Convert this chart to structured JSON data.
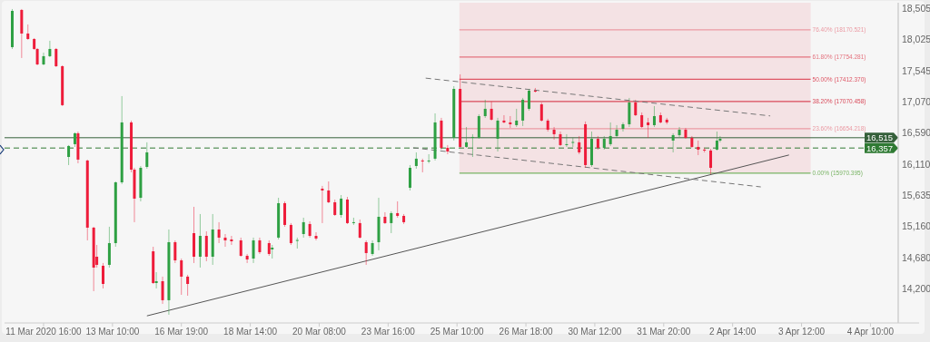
{
  "chart_data": {
    "type": "candlestick",
    "categories": [
      null,
      null,
      null,
      null,
      null,
      null,
      null,
      null,
      null,
      null,
      null,
      null,
      "11 Mar 2020 16:00",
      null,
      null,
      null,
      null,
      null,
      null,
      null,
      null,
      null,
      null,
      null,
      null,
      null,
      null,
      null,
      null,
      null,
      null,
      null,
      null,
      null,
      "13 Mar 10:00",
      null,
      null,
      null,
      null,
      null,
      null,
      null,
      null,
      null,
      null,
      null,
      null,
      null,
      null,
      null,
      null,
      null,
      null,
      null,
      null,
      null,
      "16 Mar 19:00",
      null,
      null,
      null,
      null,
      null,
      null,
      null,
      null,
      null,
      null,
      null,
      null,
      null,
      null,
      null,
      null,
      null,
      null,
      null,
      null,
      null,
      "18 Mar 14:00",
      null,
      null,
      null,
      null,
      null,
      null,
      null,
      null,
      null,
      null,
      null,
      null,
      null,
      null,
      null,
      null,
      null,
      null,
      null,
      null,
      null,
      "20 Mar 08:00",
      null,
      null,
      null,
      null,
      null,
      null,
      null,
      null,
      null,
      null,
      null,
      null,
      null,
      null,
      null,
      null,
      null,
      null,
      null,
      null,
      null,
      "23 Mar 16:00",
      null,
      null,
      null,
      null,
      null,
      null,
      null,
      null,
      null,
      null,
      null,
      null,
      null,
      null,
      null,
      null,
      null,
      null,
      null,
      null,
      null,
      "25 Mar 10:00",
      null,
      null,
      null,
      null,
      null,
      null,
      null,
      null,
      null,
      null,
      null,
      null,
      null,
      null,
      null,
      null,
      null,
      null,
      null,
      null,
      null,
      "26 Mar 18:00",
      null,
      null,
      null,
      null,
      null,
      null,
      null,
      null,
      null,
      null,
      null,
      null,
      null,
      null,
      null,
      null,
      null,
      null,
      null,
      null,
      null,
      "30 Mar 12:00",
      null,
      null,
      null,
      null,
      null,
      null,
      null,
      null,
      null,
      null,
      null,
      null,
      null,
      null,
      null,
      null,
      null,
      null,
      null,
      null,
      null,
      "31 Mar 20:00",
      null,
      null,
      null,
      null,
      null,
      null,
      null,
      null,
      null,
      null,
      null,
      null,
      null,
      null,
      null,
      null,
      null,
      null,
      null,
      null,
      null,
      "2 Apr 14:00",
      null,
      null,
      null,
      null,
      null,
      null,
      null,
      null,
      null,
      null,
      null,
      null,
      null,
      null,
      null,
      null,
      null,
      null,
      null,
      null,
      null,
      "3 Apr 12:00",
      null,
      null,
      null,
      null,
      null,
      null,
      null,
      null,
      null,
      null,
      null,
      null,
      null,
      null,
      null,
      null,
      null,
      null,
      null,
      null,
      null,
      "4 Apr 10:00",
      null,
      null,
      null,
      null,
      null,
      null,
      null,
      null
    ],
    "ylim": [
      13671,
      18588
    ],
    "yticks": [
      {
        "value": 18505,
        "label": "18,505"
      },
      {
        "value": 18025,
        "label": "18,025"
      },
      {
        "value": 17545,
        "label": "17,545"
      },
      {
        "value": 17070,
        "label": "17,070"
      },
      {
        "value": 16590,
        "label": "16,590"
      },
      {
        "value": 16110,
        "label": "16,110"
      },
      {
        "value": 15635,
        "label": "15,635"
      },
      {
        "value": 15160,
        "label": "15,160"
      },
      {
        "value": 14680,
        "label": "14,680"
      },
      {
        "value": 14200,
        "label": "14,200"
      }
    ],
    "ohlc": [
      null,
      null,
      [
        17906,
        18491,
        17878,
        18463
      ],
      null,
      null,
      [
        18477,
        18491,
        17739,
        18115
      ],
      null,
      [
        18115,
        18254,
        18018,
        18031
      ],
      null,
      [
        18031,
        18045,
        17864,
        17878
      ],
      [
        17878,
        17892,
        17627,
        17641
      ],
      null,
      [
        17641,
        17822,
        17627,
        17767
      ],
      null,
      [
        17767,
        18004,
        17753,
        17878
      ],
      null,
      [
        17878,
        17892,
        17600,
        17613
      ],
      null,
      [
        17613,
        17627,
        17001,
        17015
      ],
      null,
      [
        16220,
        16402,
        16095,
        16388
      ],
      null,
      [
        16416,
        16597,
        16374,
        16583
      ],
      [
        16583,
        16610,
        16123,
        16179
      ],
      null,
      null,
      [
        16165,
        16179,
        14939,
        15134
      ],
      null,
      [
        15134,
        15148,
        14159,
        14521
      ],
      [
        14688,
        14869,
        14521,
        14563
      ],
      null,
      [
        14549,
        14591,
        14201,
        14270
      ],
      null,
      [
        14563,
        15148,
        14521,
        14897
      ],
      null,
      [
        14897,
        15844,
        14841,
        15830
      ],
      null,
      [
        15830,
        17154,
        15803,
        16750
      ],
      null,
      null,
      [
        16750,
        16778,
        15984,
        16025
      ],
      [
        16025,
        16053,
        15218,
        15580
      ],
      null,
      [
        15593,
        16081,
        15538,
        16053
      ],
      null,
      [
        16067,
        16444,
        16039,
        16290
      ],
      null,
      [
        14771,
        14841,
        14270,
        14284
      ],
      [
        14284,
        14451,
        14201,
        14312
      ],
      null,
      [
        14312,
        14382,
        13964,
        14020
      ],
      null,
      [
        14020,
        15106,
        13797,
        14911
      ],
      null,
      [
        14911,
        14939,
        14591,
        14632
      ],
      null,
      [
        14632,
        14660,
        14103,
        14382
      ],
      null,
      [
        14382,
        14410,
        14089,
        14270
      ],
      null,
      [
        15050,
        15454,
        14591,
        14688
      ],
      null,
      [
        14688,
        15343,
        14521,
        15008
      ],
      null,
      [
        15008,
        15078,
        14619,
        14688
      ],
      null,
      [
        14688,
        15343,
        14563,
        15106
      ],
      null,
      [
        15106,
        15218,
        14897,
        14981
      ],
      null,
      [
        14981,
        15036,
        14841,
        14939
      ],
      null,
      [
        14953,
        15008,
        14869,
        14925
      ],
      null,
      null,
      [
        14939,
        14981,
        14688,
        14702
      ],
      null,
      [
        14702,
        14730,
        14591,
        14646
      ],
      null,
      [
        14660,
        14981,
        14591,
        14939
      ],
      null,
      [
        14939,
        14981,
        14730,
        14758
      ],
      null,
      null,
      [
        14897,
        14939,
        14702,
        14730
      ],
      [
        14800,
        14869,
        14660,
        14827
      ],
      null,
      [
        14981,
        15593,
        14953,
        15510
      ],
      null,
      [
        15510,
        15538,
        15148,
        15176
      ],
      null,
      [
        15176,
        15204,
        14869,
        14897
      ],
      null,
      [
        14939,
        14981,
        14813,
        14945
      ],
      null,
      [
        15036,
        15287,
        14981,
        15218
      ],
      null,
      [
        15190,
        15232,
        14981,
        15008
      ],
      null,
      [
        15008,
        15064,
        14939,
        14967
      ],
      null,
      [
        15733,
        15775,
        15204,
        15705
      ],
      null,
      [
        15705,
        15844,
        15510,
        15524
      ],
      null,
      [
        15524,
        15566,
        15315,
        15329
      ],
      null,
      [
        15329,
        15635,
        15287,
        15580
      ],
      null,
      [
        15566,
        15607,
        15190,
        15204
      ],
      null,
      [
        15204,
        15287,
        15176,
        15218
      ],
      null,
      [
        15204,
        15259,
        14967,
        14981
      ],
      null,
      [
        14911,
        14939,
        14563,
        14744
      ],
      null,
      [
        14730,
        14939,
        14702,
        14897
      ],
      null,
      [
        14911,
        15593,
        14786,
        15301
      ],
      null,
      [
        15301,
        15371,
        15190,
        15204
      ],
      null,
      [
        15204,
        15385,
        15050,
        15357
      ],
      null,
      [
        15357,
        15538,
        15287,
        15315
      ],
      null,
      [
        15315,
        15343,
        15190,
        15218
      ],
      null,
      [
        15747,
        16095,
        15705,
        16053
      ],
      null,
      [
        16081,
        16290,
        16039,
        16193
      ],
      null,
      [
        16165,
        16193,
        15984,
        16151
      ],
      null,
      [
        16151,
        16262,
        16123,
        16165
      ],
      null,
      [
        16193,
        16889,
        16165,
        16750
      ],
      null,
      [
        16778,
        16820,
        16332,
        16360
      ],
      null,
      [
        16360,
        16402,
        16262,
        16304
      ],
      null,
      [
        16513,
        17307,
        16471,
        17265
      ],
      null,
      [
        17265,
        17488,
        16360,
        16374
      ],
      null,
      [
        16374,
        16680,
        16360,
        16444
      ],
      null,
      [
        16513,
        16569,
        16220,
        16527
      ],
      null,
      [
        16513,
        16875,
        16499,
        16847
      ],
      null,
      [
        16847,
        17098,
        16820,
        16959
      ],
      null,
      [
        16959,
        17070,
        16778,
        16792
      ],
      null,
      [
        16499,
        16820,
        16304,
        16778
      ],
      null,
      [
        16778,
        16861,
        16736,
        16750
      ],
      null,
      [
        16750,
        16847,
        16666,
        16722
      ],
      null,
      [
        16708,
        16959,
        16680,
        16778
      ],
      null,
      [
        16778,
        17126,
        16694,
        17098
      ],
      null,
      [
        16959,
        17265,
        16931,
        17237
      ],
      null,
      [
        17237,
        17279,
        17209,
        17230
      ],
      null,
      [
        17028,
        17056,
        16764,
        16778
      ],
      null,
      [
        16778,
        16806,
        16610,
        16638
      ],
      null,
      [
        16638,
        16680,
        16485,
        16569
      ],
      null,
      [
        16569,
        16610,
        16388,
        16402
      ],
      null,
      [
        16402,
        16569,
        16374,
        16416
      ],
      null,
      [
        16444,
        16513,
        16374,
        16450
      ],
      null,
      [
        16444,
        16541,
        16262,
        16290
      ],
      null,
      [
        16722,
        16764,
        16053,
        16095
      ],
      null,
      [
        16095,
        16610,
        16067,
        16499
      ],
      null,
      [
        16499,
        16541,
        16332,
        16360
      ],
      null,
      [
        16360,
        16541,
        16332,
        16499
      ],
      null,
      [
        16416,
        16750,
        16388,
        16541
      ],
      null,
      [
        16541,
        16708,
        16513,
        16638
      ],
      null,
      [
        16652,
        16750,
        16610,
        16722
      ],
      null,
      [
        16722,
        17126,
        16680,
        17056
      ],
      null,
      [
        17056,
        17098,
        16847,
        16861
      ],
      null,
      [
        16861,
        16903,
        16666,
        16680
      ],
      null,
      [
        16750,
        16820,
        16513,
        16708
      ],
      null,
      [
        16708,
        17001,
        16680,
        16847
      ],
      null,
      [
        16861,
        16903,
        16736,
        16750
      ],
      null,
      [
        16792,
        16820,
        16722,
        16750
      ],
      null,
      [
        16471,
        16583,
        16290,
        16555
      ],
      null,
      [
        16555,
        16680,
        16527,
        16638
      ],
      null,
      [
        16638,
        16666,
        16499,
        16513
      ],
      null,
      [
        16513,
        16541,
        16360,
        16374
      ],
      null,
      [
        16374,
        16471,
        16248,
        16332
      ],
      null,
      [
        16332,
        16360,
        16290,
        16325
      ],
      null,
      [
        16318,
        16346,
        15956,
        16053
      ],
      null,
      [
        16332,
        16610,
        16318,
        16471
      ],
      [
        16471,
        16541,
        16444,
        16499
      ],
      null,
      null,
      null,
      null,
      null,
      null,
      null,
      null,
      null,
      null,
      null,
      null,
      null,
      null,
      null,
      null,
      null,
      null,
      null,
      null,
      null,
      null,
      null,
      null,
      null,
      null,
      null,
      null,
      null,
      null,
      null,
      null,
      null,
      null,
      null,
      null,
      null,
      null,
      null,
      null,
      null,
      null,
      null,
      null,
      null,
      null,
      null,
      null,
      null,
      null,
      null,
      null,
      null,
      null,
      null,
      null
    ],
    "colors": [
      null,
      null,
      "#2ea043",
      null,
      null,
      "#ee1c3a",
      null,
      "#ee1c3a",
      null,
      "#ee1c3a",
      "#ee1c3a",
      null,
      "#2ea043",
      null,
      "#2ea043",
      null,
      "#ee1c3a",
      null,
      "#ee1c3a",
      null,
      "#2ea043",
      null,
      "#2ea043",
      "#ee1c3a",
      null,
      null,
      "#ee1c3a",
      null,
      "#ee1c3a",
      "#ee1c3a",
      null,
      "#ee1c3a",
      null,
      "#2ea043",
      null,
      "#2ea043",
      null,
      "#2ea043",
      null,
      null,
      "#ee1c3a",
      "#ee1c3a",
      null,
      "#2ea043",
      null,
      "#2ea043",
      null,
      "#ee1c3a",
      "#2ea043",
      null,
      "#ee1c3a",
      null,
      "#2ea043",
      null,
      "#ee1c3a",
      null,
      "#ee1c3a",
      null,
      "#ee1c3a",
      null,
      "#ee1c3a",
      null,
      "#2ea043",
      null,
      "#ee1c3a",
      null,
      "#2ea043",
      null,
      "#ee1c3a",
      null,
      "#ee1c3a",
      null,
      "#ee1c3a",
      null,
      null,
      "#ee1c3a",
      null,
      "#ee1c3a",
      null,
      "#2ea043",
      null,
      "#ee1c3a",
      null,
      null,
      "#ee1c3a",
      "#2ea043",
      null,
      "#2ea043",
      null,
      "#ee1c3a",
      null,
      "#ee1c3a",
      null,
      "#2ea043",
      null,
      "#2ea043",
      null,
      "#ee1c3a",
      null,
      "#ee1c3a",
      null,
      "#ee1c3a",
      null,
      "#ee1c3a",
      null,
      "#ee1c3a",
      null,
      "#2ea043",
      null,
      "#ee1c3a",
      null,
      "#2ea043",
      null,
      "#ee1c3a",
      null,
      "#ee1c3a",
      null,
      "#2ea043",
      null,
      "#2ea043",
      null,
      "#ee1c3a",
      null,
      "#2ea043",
      null,
      "#ee1c3a",
      null,
      "#ee1c3a",
      null,
      "#2ea043",
      null,
      "#2ea043",
      null,
      "#ee1c3a",
      null,
      "#2ea043",
      null,
      "#2ea043",
      null,
      "#ee1c3a",
      null,
      "#ee1c3a",
      null,
      "#2ea043",
      null,
      "#ee1c3a",
      null,
      "#2ea043",
      null,
      "#2ea043",
      null,
      "#2ea043",
      null,
      "#2ea043",
      null,
      "#ee1c3a",
      null,
      "#2ea043",
      null,
      "#ee1c3a",
      null,
      "#ee1c3a",
      null,
      "#2ea043",
      null,
      "#2ea043",
      null,
      "#2ea043",
      null,
      "#ee1c3a",
      null,
      "#ee1c3a",
      null,
      "#ee1c3a",
      null,
      "#ee1c3a",
      null,
      "#ee1c3a",
      null,
      "#2ea043",
      null,
      "#2ea043",
      null,
      "#ee1c3a",
      null,
      "#ee1c3a",
      null,
      "#2ea043",
      null,
      "#ee1c3a",
      null,
      "#2ea043",
      null,
      "#2ea043",
      null,
      "#2ea043",
      null,
      "#2ea043",
      null,
      "#2ea043",
      null,
      "#ee1c3a",
      null,
      "#ee1c3a",
      null,
      "#ee1c3a",
      null,
      "#2ea043",
      null,
      "#ee1c3a",
      null,
      "#ee1c3a",
      null,
      "#2ea043",
      null,
      "#2ea043",
      null,
      "#ee1c3a",
      null,
      "#ee1c3a",
      null,
      "#ee1c3a",
      null,
      "#ee1c3a",
      null,
      "#ee1c3a",
      null,
      "#2ea043",
      "#2ea043",
      null,
      null,
      null,
      null,
      null,
      null,
      null,
      null,
      null,
      null,
      null,
      null,
      null,
      null,
      null,
      null,
      null,
      null,
      null,
      null,
      null,
      null,
      null,
      null,
      null,
      null,
      null,
      null,
      null,
      null,
      null,
      null,
      null,
      null,
      null,
      null,
      null,
      null,
      null,
      null,
      null,
      null,
      null,
      null,
      null,
      null,
      null,
      null,
      null,
      null,
      null,
      null,
      null,
      null,
      null,
      null
    ],
    "series": [
      {
        "type": "line",
        "color": "#555555",
        "line_style": "solid",
        "values": [
          null,
          null,
          null,
          null,
          null,
          null,
          null,
          null,
          null,
          null,
          null,
          null,
          null,
          null,
          null,
          null,
          null,
          null,
          null,
          null,
          null,
          null,
          null,
          null,
          null,
          null,
          null,
          null,
          null,
          null,
          null,
          null,
          null,
          null,
          null,
          null,
          null,
          null,
          null,
          null,
          null,
          null,
          null,
          null,
          null,
          13780,
          null,
          null,
          null,
          null,
          null,
          null,
          null,
          null,
          null,
          null,
          null,
          null,
          null,
          null,
          null,
          null,
          null,
          null,
          null,
          null,
          null,
          null,
          null,
          null,
          null,
          null,
          null,
          null,
          null,
          null,
          null,
          null,
          null,
          null,
          null,
          null,
          null,
          null,
          null,
          null,
          null,
          null,
          null,
          null,
          null,
          null,
          null,
          null,
          null,
          null,
          null,
          null,
          null,
          null,
          null,
          null,
          null,
          null,
          null,
          null,
          null,
          null,
          null,
          null,
          null,
          null,
          null,
          null,
          null,
          null,
          null,
          null,
          null,
          null,
          null,
          null,
          null,
          null,
          null,
          null,
          null,
          null,
          null,
          null,
          null,
          null,
          null,
          null,
          null,
          null,
          null,
          null,
          null,
          null,
          null,
          null,
          null,
          null,
          null,
          null,
          null,
          null,
          null,
          null,
          null,
          null,
          null,
          null,
          null,
          null,
          null,
          null,
          null,
          null,
          null,
          null,
          null,
          null,
          null,
          null,
          null,
          null,
          null,
          null,
          null,
          null,
          null,
          null,
          null,
          null,
          null,
          null,
          null,
          null,
          null,
          null,
          null,
          null,
          null,
          null,
          null,
          null,
          null,
          null,
          null,
          null,
          null,
          null,
          null,
          null,
          null,
          null,
          null,
          null,
          null,
          null,
          null,
          null,
          null,
          null,
          null,
          null,
          null,
          null,
          null,
          null,
          null,
          null,
          null,
          null,
          null,
          null,
          null,
          null,
          null,
          null,
          null,
          null,
          null,
          null,
          null,
          null,
          null,
          null,
          null,
          null,
          null,
          null,
          null,
          null,
          null,
          null,
          null,
          null,
          null,
          null,
          null,
          null,
          null,
          null,
          null,
          null,
          null,
          null,
          16250,
          null,
          null,
          null,
          null,
          null,
          null,
          null,
          null,
          null,
          null,
          null,
          null,
          null,
          null,
          null,
          null,
          null,
          null,
          null,
          null,
          null,
          null,
          null,
          null,
          null,
          null,
          null,
          null,
          null,
          null,
          null,
          null,
          null,
          null
        ]
      },
      {
        "type": "line",
        "color": "#777777",
        "line_style": "dashed",
        "values": [
          null,
          null,
          null,
          null,
          null,
          null,
          null,
          null,
          null,
          null,
          null,
          null,
          null,
          null,
          null,
          null,
          null,
          null,
          null,
          null,
          null,
          null,
          null,
          null,
          null,
          null,
          null,
          null,
          null,
          null,
          null,
          null,
          null,
          null,
          null,
          null,
          null,
          null,
          null,
          null,
          null,
          null,
          null,
          null,
          null,
          null,
          null,
          null,
          null,
          null,
          null,
          null,
          null,
          null,
          null,
          null,
          null,
          null,
          null,
          null,
          null,
          null,
          null,
          null,
          null,
          null,
          null,
          null,
          null,
          null,
          null,
          null,
          null,
          null,
          null,
          null,
          null,
          null,
          null,
          null,
          null,
          null,
          null,
          null,
          null,
          null,
          null,
          null,
          null,
          null,
          null,
          null,
          null,
          null,
          null,
          null,
          null,
          null,
          null,
          null,
          null,
          null,
          null,
          null,
          null,
          null,
          null,
          null,
          null,
          null,
          null,
          null,
          null,
          null,
          null,
          null,
          null,
          null,
          null,
          null,
          null,
          null,
          null,
          null,
          null,
          null,
          null,
          null,
          null,
          null,
          null,
          null,
          null,
          null,
          17430,
          null,
          null,
          null,
          null,
          null,
          null,
          null,
          null,
          null,
          null,
          null,
          null,
          null,
          null,
          null,
          null,
          null,
          null,
          null,
          null,
          null,
          null,
          null,
          null,
          null,
          null,
          null,
          null,
          null,
          null,
          null,
          null,
          null,
          null,
          null,
          null,
          null,
          null,
          null,
          null,
          null,
          null,
          null,
          null,
          null,
          null,
          null,
          null,
          null,
          null,
          null,
          null,
          null,
          null,
          null,
          null,
          null,
          null,
          null,
          null,
          null,
          null,
          null,
          null,
          null,
          null,
          null,
          null,
          null,
          null,
          null,
          null,
          null,
          null,
          null,
          null,
          null,
          null,
          null,
          null,
          null,
          null,
          null,
          null,
          null,
          null,
          null,
          null,
          null,
          null,
          null,
          null,
          null,
          null,
          null,
          null,
          null,
          null,
          null,
          null,
          null,
          null,
          null,
          null,
          null,
          null,
          null,
          null,
          null,
          16850,
          null,
          null,
          null,
          null,
          null,
          null,
          null,
          null,
          null,
          null,
          null,
          null,
          null,
          null,
          null,
          null,
          null,
          null,
          null,
          null,
          null,
          null,
          null,
          null,
          null,
          null,
          null,
          null,
          null,
          null,
          null,
          null,
          null,
          null,
          null,
          null,
          null,
          null,
          null,
          null
        ]
      },
      {
        "type": "line",
        "color": "#777777",
        "line_style": "dashed",
        "values": [
          null,
          null,
          null,
          null,
          null,
          null,
          null,
          null,
          null,
          null,
          null,
          null,
          null,
          null,
          null,
          null,
          null,
          null,
          null,
          null,
          null,
          null,
          null,
          null,
          null,
          null,
          null,
          null,
          null,
          null,
          null,
          null,
          null,
          null,
          null,
          null,
          null,
          null,
          null,
          null,
          null,
          null,
          null,
          null,
          null,
          null,
          null,
          null,
          null,
          null,
          null,
          null,
          null,
          null,
          null,
          null,
          null,
          null,
          null,
          null,
          null,
          null,
          null,
          null,
          null,
          null,
          null,
          null,
          null,
          null,
          null,
          null,
          null,
          null,
          null,
          null,
          null,
          null,
          null,
          null,
          null,
          null,
          null,
          null,
          null,
          null,
          null,
          null,
          null,
          null,
          null,
          null,
          null,
          null,
          null,
          null,
          null,
          null,
          null,
          null,
          null,
          null,
          null,
          null,
          null,
          null,
          null,
          null,
          null,
          null,
          null,
          null,
          null,
          null,
          null,
          null,
          null,
          null,
          null,
          null,
          null,
          null,
          null,
          null,
          null,
          null,
          null,
          null,
          null,
          null,
          16360,
          null,
          null,
          null,
          null,
          null,
          null,
          null,
          null,
          null,
          null,
          null,
          null,
          null,
          null,
          null,
          null,
          null,
          null,
          null,
          null,
          null,
          null,
          null,
          null,
          null,
          null,
          null,
          null,
          null,
          null,
          null,
          null,
          null,
          null,
          null,
          null,
          null,
          null,
          null,
          null,
          null,
          null,
          null,
          null,
          null,
          null,
          null,
          null,
          null,
          null,
          null,
          null,
          null,
          null,
          null,
          null,
          null,
          null,
          null,
          null,
          null,
          null,
          null,
          null,
          null,
          null,
          null,
          null,
          null,
          null,
          null,
          null,
          null,
          null,
          null,
          null,
          null,
          null,
          null,
          null,
          null,
          null,
          null,
          null,
          null,
          null,
          null,
          null,
          null,
          null,
          null,
          null,
          null,
          null,
          null,
          null,
          null,
          null,
          null,
          null,
          null,
          null,
          null,
          null,
          null,
          null,
          null,
          null,
          null,
          null,
          15760,
          null,
          null,
          null,
          null,
          null,
          null,
          null,
          null,
          null,
          null,
          null,
          null,
          null,
          null,
          null,
          null,
          null,
          null,
          null,
          null,
          null,
          null,
          null,
          null,
          null,
          null,
          null,
          null,
          null,
          null,
          null,
          null,
          null,
          null,
          null,
          null,
          null,
          null,
          null,
          null,
          null,
          null,
          null
        ]
      }
    ],
    "bands": [
      {
        "axis": "y",
        "from": 15970.395,
        "to": 18588,
        "color": "#f4e2e4"
      }
    ],
    "ref_lines": [
      {
        "axis": "y",
        "value": 18170.521,
        "label": "76.40% (18170.521)",
        "color": "#eb9aa3"
      },
      {
        "axis": "y",
        "value": 17754.281,
        "label": "61.80% (17754.281)",
        "color": "#e4737f"
      },
      {
        "axis": "y",
        "value": 17412.37,
        "label": "50.00% (17412.370)",
        "color": "#de5564"
      },
      {
        "axis": "y",
        "value": 17070.458,
        "label": "38.20% (17070.458)",
        "color": "#d94a5a"
      },
      {
        "axis": "y",
        "value": 16654.218,
        "label": "23.60% (16654.218)",
        "color": "#eb9aa3"
      },
      {
        "axis": "y",
        "value": 15970.395,
        "label": "0.00% (15970.395)",
        "color": "#79b465"
      },
      {
        "axis": "y",
        "value": 16515,
        "label": "16,515",
        "color": "#35603a",
        "line_style": "solid"
      },
      {
        "axis": "y",
        "value": 16357,
        "label": "16,357",
        "color": "#2f7a33",
        "line_style": "dashed"
      }
    ]
  }
}
